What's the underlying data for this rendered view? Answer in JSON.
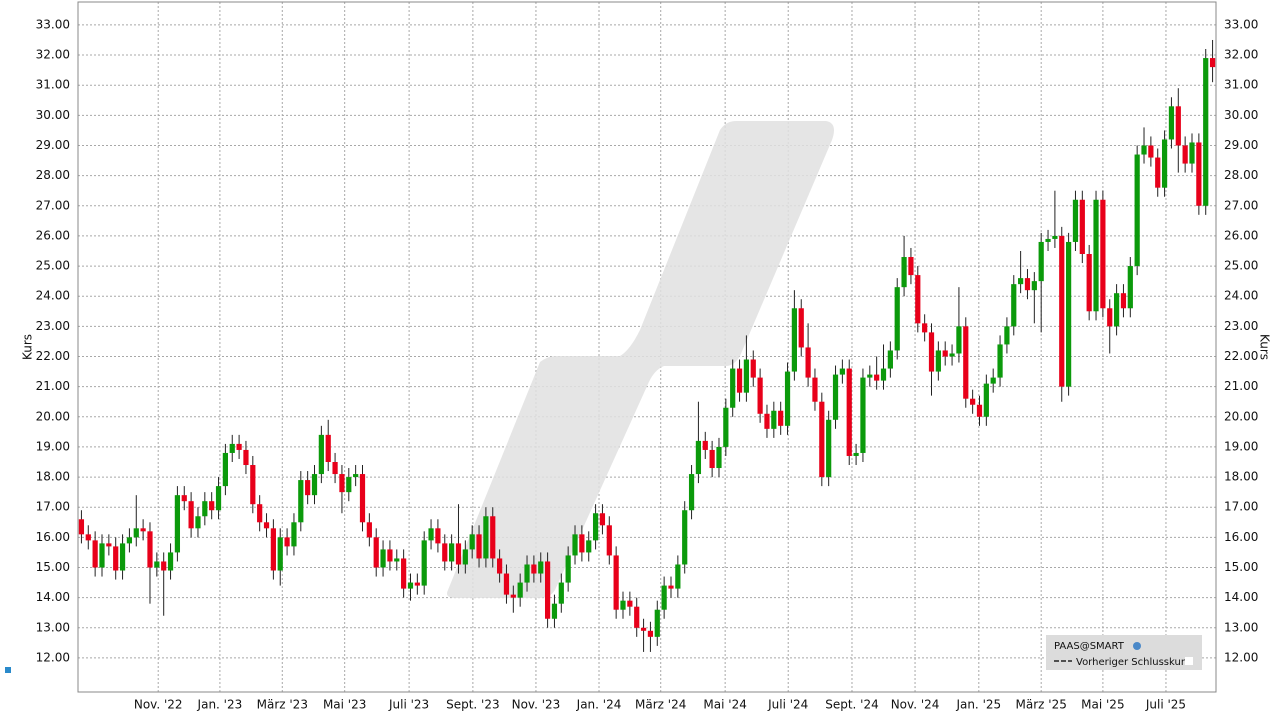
{
  "chart_data": {
    "type": "candlestick",
    "y_label": "Kurs",
    "y2_label": "Kurs",
    "legend": {
      "symbol": "PAAS@SMART",
      "previous_close": "Vorheriger Schlusskurs"
    },
    "up_color": "#0b9a0b",
    "down_color": "#e8001a",
    "grid": true,
    "ylim": [
      10.87,
      33.76
    ],
    "yticks": [
      {
        "value": 12,
        "label": "12.00"
      },
      {
        "value": 13,
        "label": "13.00"
      },
      {
        "value": 14,
        "label": "14.00"
      },
      {
        "value": 15,
        "label": "15.00"
      },
      {
        "value": 16,
        "label": "16.00"
      },
      {
        "value": 17,
        "label": "17.00"
      },
      {
        "value": 18,
        "label": "18.00"
      },
      {
        "value": 19,
        "label": "19.00"
      },
      {
        "value": 20,
        "label": "20.00"
      },
      {
        "value": 21,
        "label": "21.00"
      },
      {
        "value": 22,
        "label": "22.00"
      },
      {
        "value": 23,
        "label": "23.00"
      },
      {
        "value": 24,
        "label": "24.00"
      },
      {
        "value": 25,
        "label": "25.00"
      },
      {
        "value": 26,
        "label": "26.00"
      },
      {
        "value": 27,
        "label": "27.00"
      },
      {
        "value": 28,
        "label": "28.00"
      },
      {
        "value": 29,
        "label": "29.00"
      },
      {
        "value": 30,
        "label": "30.00"
      },
      {
        "value": 31,
        "label": "31.00"
      },
      {
        "value": 32,
        "label": "32.00"
      },
      {
        "value": 33,
        "label": "33.00"
      }
    ],
    "xlim": [
      0,
      166
    ],
    "xticks": [
      {
        "value": 11.7,
        "label": "Nov. '22"
      },
      {
        "value": 20.7,
        "label": "Jan. '23"
      },
      {
        "value": 29.8,
        "label": "März '23"
      },
      {
        "value": 38.9,
        "label": "Mai '23"
      },
      {
        "value": 48.3,
        "label": "Juli '23"
      },
      {
        "value": 57.6,
        "label": "Sept. '23"
      },
      {
        "value": 66.8,
        "label": "Nov. '23"
      },
      {
        "value": 76.0,
        "label": "Jan. '24"
      },
      {
        "value": 85.0,
        "label": "März '24"
      },
      {
        "value": 94.4,
        "label": "Mai '24"
      },
      {
        "value": 103.6,
        "label": "Juli '24"
      },
      {
        "value": 112.9,
        "label": "Sept. '24"
      },
      {
        "value": 122.1,
        "label": "Nov. '24"
      },
      {
        "value": 131.4,
        "label": "Jan. '25"
      },
      {
        "value": 140.5,
        "label": "März '25"
      },
      {
        "value": 149.5,
        "label": "Mai '25"
      },
      {
        "value": 158.7,
        "label": "Juli '25"
      }
    ],
    "open": [
      16.6,
      16.1,
      15.9,
      15.0,
      15.8,
      15.7,
      14.9,
      15.8,
      16.0,
      16.3,
      16.2,
      15.0,
      15.2,
      14.9,
      15.5,
      17.4,
      17.2,
      16.3,
      16.7,
      17.2,
      16.9,
      17.7,
      18.8,
      19.1,
      18.9,
      18.4,
      17.1,
      16.5,
      16.3,
      14.9,
      16.0,
      15.7,
      16.5,
      17.9,
      17.4,
      18.1,
      19.4,
      18.5,
      18.1,
      17.5,
      18.0,
      18.1,
      16.5,
      16.0,
      15.0,
      15.6,
      15.2,
      15.3,
      14.3,
      14.5,
      14.4,
      15.9,
      16.3,
      15.8,
      15.2,
      15.8,
      15.1,
      15.6,
      16.1,
      15.3,
      16.7,
      15.3,
      14.8,
      14.1,
      14.0,
      14.5,
      15.1,
      14.8,
      15.2,
      13.3,
      13.8,
      14.5,
      15.4,
      16.1,
      15.5,
      15.9,
      16.8,
      16.4,
      15.4,
      13.6,
      13.9,
      13.7,
      13.0,
      12.9,
      12.7,
      13.6,
      14.4,
      14.3,
      15.1,
      16.9,
      18.1,
      19.2,
      18.9,
      18.3,
      19.0,
      20.3,
      21.6,
      20.8,
      21.9,
      21.3,
      20.1,
      19.6,
      20.2,
      19.7,
      21.5,
      23.6,
      22.3,
      21.3,
      20.5,
      18.0,
      19.9,
      21.4,
      21.6,
      18.7,
      18.8,
      21.3,
      21.4,
      21.2,
      21.6,
      22.2,
      24.3,
      25.3,
      24.7,
      23.1,
      22.8,
      21.5,
      22.2,
      22.0,
      22.1,
      23.0,
      20.6,
      20.4,
      20.0,
      21.1,
      21.3,
      22.4,
      23.0,
      24.4,
      24.6,
      24.2,
      24.5,
      25.8,
      25.9,
      26.0,
      21.0,
      25.8,
      27.2,
      25.4,
      23.5,
      27.2,
      23.6,
      23.0,
      24.1,
      23.6,
      25.0,
      28.7,
      29.0,
      28.6,
      27.6,
      29.2,
      30.3,
      29.0,
      28.4,
      29.1,
      27.0,
      31.9
    ],
    "high": [
      16.9,
      16.4,
      16.2,
      16.1,
      16.1,
      16.0,
      16.1,
      16.3,
      17.4,
      16.6,
      16.5,
      15.5,
      15.5,
      15.8,
      17.7,
      17.7,
      17.5,
      17.0,
      17.5,
      17.5,
      18.0,
      19.1,
      19.4,
      19.4,
      19.2,
      18.7,
      17.4,
      16.8,
      16.6,
      16.3,
      16.3,
      16.8,
      18.2,
      18.2,
      18.4,
      19.7,
      19.9,
      18.8,
      18.4,
      18.3,
      18.4,
      18.4,
      16.8,
      16.3,
      15.9,
      15.9,
      15.6,
      15.6,
      14.8,
      14.8,
      16.2,
      16.6,
      16.6,
      16.1,
      16.1,
      17.1,
      15.9,
      16.4,
      16.4,
      17.0,
      17.0,
      15.6,
      15.1,
      14.4,
      14.8,
      15.4,
      15.4,
      15.5,
      15.5,
      14.1,
      14.8,
      15.7,
      16.4,
      16.4,
      16.2,
      17.1,
      17.1,
      16.7,
      15.7,
      14.2,
      14.2,
      14.0,
      13.3,
      13.2,
      13.9,
      14.7,
      14.7,
      15.4,
      17.2,
      18.4,
      20.5,
      19.5,
      19.2,
      19.3,
      20.6,
      21.9,
      21.9,
      22.7,
      22.2,
      21.6,
      20.4,
      20.5,
      20.5,
      21.8,
      24.2,
      23.9,
      23.1,
      21.6,
      20.8,
      20.2,
      21.7,
      21.9,
      21.9,
      19.1,
      21.6,
      21.7,
      22.0,
      22.4,
      22.5,
      24.6,
      26.0,
      25.6,
      25.0,
      23.4,
      23.1,
      22.5,
      22.5,
      22.4,
      24.3,
      23.3,
      20.9,
      20.7,
      21.4,
      21.6,
      22.7,
      23.3,
      24.7,
      25.5,
      24.9,
      24.8,
      26.1,
      26.2,
      27.5,
      26.3,
      26.1,
      27.5,
      27.5,
      25.7,
      27.5,
      27.5,
      23.9,
      24.4,
      24.4,
      25.3,
      29.0,
      29.6,
      29.3,
      28.9,
      29.5,
      30.6,
      30.9,
      29.3,
      29.4,
      29.4,
      32.2,
      32.5
    ],
    "low": [
      15.8,
      15.6,
      14.7,
      14.7,
      15.4,
      14.6,
      14.6,
      15.5,
      15.7,
      15.9,
      13.8,
      14.7,
      13.4,
      14.6,
      15.2,
      16.9,
      16.0,
      16.0,
      16.4,
      16.6,
      16.6,
      17.4,
      18.5,
      18.6,
      18.1,
      16.8,
      16.2,
      16.0,
      14.6,
      14.4,
      15.4,
      15.4,
      16.2,
      17.1,
      17.1,
      17.8,
      18.2,
      17.8,
      16.8,
      17.2,
      17.7,
      16.2,
      15.7,
      14.7,
      14.7,
      14.9,
      14.9,
      14.0,
      13.9,
      14.1,
      14.1,
      15.6,
      15.5,
      14.9,
      14.9,
      14.8,
      14.8,
      15.3,
      15.0,
      15.0,
      15.0,
      14.5,
      13.8,
      13.5,
      13.7,
      14.2,
      14.5,
      14.5,
      13.0,
      13.0,
      13.5,
      14.2,
      15.1,
      15.2,
      15.2,
      15.6,
      16.1,
      15.1,
      13.3,
      13.3,
      13.4,
      12.7,
      12.2,
      12.2,
      12.4,
      13.3,
      14.0,
      14.0,
      14.8,
      16.6,
      17.8,
      18.6,
      18.0,
      18.0,
      18.7,
      20.0,
      20.5,
      20.5,
      21.0,
      19.8,
      19.3,
      19.3,
      19.4,
      19.4,
      21.2,
      22.0,
      21.0,
      20.2,
      17.7,
      17.7,
      19.6,
      21.1,
      18.4,
      18.4,
      18.5,
      21.0,
      20.9,
      20.9,
      21.3,
      21.9,
      24.0,
      24.4,
      22.8,
      22.5,
      20.7,
      21.2,
      21.7,
      21.7,
      21.8,
      20.3,
      20.1,
      19.7,
      19.7,
      20.8,
      21.0,
      22.1,
      22.7,
      24.1,
      23.9,
      23.1,
      22.8,
      25.5,
      25.6,
      20.5,
      20.7,
      25.5,
      25.1,
      23.2,
      23.2,
      23.3,
      22.1,
      22.7,
      23.3,
      23.3,
      24.7,
      28.4,
      28.3,
      27.3,
      27.3,
      28.9,
      28.1,
      28.1,
      28.1,
      26.7,
      26.7,
      31.1
    ],
    "close": [
      16.1,
      15.9,
      15.0,
      15.8,
      15.7,
      14.9,
      15.8,
      16.0,
      16.3,
      16.2,
      15.0,
      15.2,
      14.9,
      15.5,
      17.4,
      17.2,
      16.3,
      16.7,
      17.2,
      16.9,
      17.7,
      18.8,
      19.1,
      18.9,
      18.4,
      17.1,
      16.5,
      16.3,
      14.9,
      16.0,
      15.7,
      16.5,
      17.9,
      17.4,
      18.1,
      19.4,
      18.5,
      18.1,
      17.5,
      18.0,
      18.1,
      16.5,
      16.0,
      15.0,
      15.6,
      15.2,
      15.3,
      14.3,
      14.5,
      14.4,
      15.9,
      16.3,
      15.8,
      15.2,
      15.8,
      15.1,
      15.6,
      16.1,
      15.3,
      16.7,
      15.3,
      14.8,
      14.1,
      14.0,
      14.5,
      15.1,
      14.8,
      15.2,
      13.3,
      13.8,
      14.5,
      15.4,
      16.1,
      15.5,
      15.9,
      16.8,
      16.4,
      15.4,
      13.6,
      13.9,
      13.7,
      13.0,
      12.9,
      12.7,
      13.6,
      14.4,
      14.3,
      15.1,
      16.9,
      18.1,
      19.2,
      18.9,
      18.3,
      19.0,
      20.3,
      21.6,
      20.8,
      21.9,
      21.3,
      20.1,
      19.6,
      20.2,
      19.7,
      21.5,
      23.6,
      22.3,
      21.3,
      20.5,
      18.0,
      19.9,
      21.4,
      21.6,
      18.7,
      18.8,
      21.3,
      21.4,
      21.2,
      21.6,
      22.2,
      24.3,
      25.3,
      24.7,
      23.1,
      22.8,
      21.5,
      22.2,
      22.0,
      22.1,
      23.0,
      20.6,
      20.4,
      20.0,
      21.1,
      21.3,
      22.4,
      23.0,
      24.4,
      24.6,
      24.2,
      24.5,
      25.8,
      25.9,
      26.0,
      21.0,
      25.8,
      27.2,
      25.4,
      23.5,
      27.2,
      23.6,
      23.0,
      24.1,
      23.6,
      25.0,
      28.7,
      29.0,
      28.6,
      27.6,
      29.2,
      30.3,
      29.0,
      28.4,
      29.1,
      27.0,
      31.9,
      31.6
    ]
  }
}
